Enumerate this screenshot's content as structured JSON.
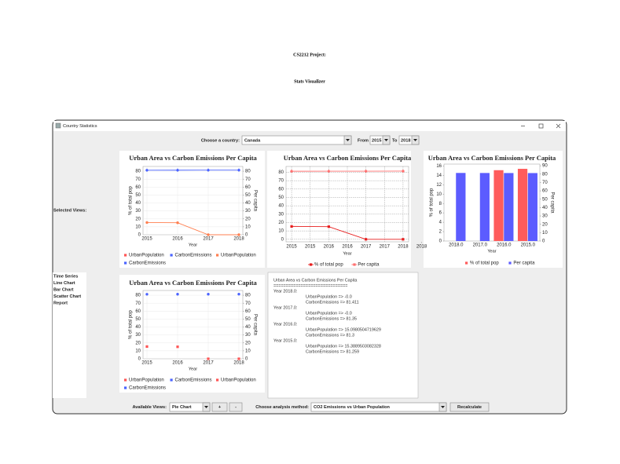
{
  "header": {
    "line1": "CS2212 Project:",
    "title": "Stats Visualizer"
  },
  "window": {
    "title": "Country Statistics",
    "country_label": "Choose a country:",
    "country": "Canada",
    "from_label": "From",
    "from": "2015",
    "to_label": "To",
    "to": "2018",
    "selected_views_label": "Selected Views:",
    "views_list": [
      "Time Series",
      "Line Chart",
      "Bar Chart",
      "Scatter Chart",
      "Report"
    ],
    "available_label": "Available Views:",
    "available": "Pie Chart",
    "add": "+",
    "remove": "-",
    "method_label": "Choose analysis method:",
    "method": "CO2 Emissions vs Urban Population",
    "recalc": "Recalculate"
  },
  "charts": [
    {
      "type": "line",
      "title": "Urban Area vs Carbon Emissions Per Capita",
      "categories": [
        "2015",
        "2016",
        "2017",
        "2018"
      ],
      "series": [
        {
          "name": "UrbanPopulation",
          "color": "#ff7f50",
          "values": [
            15.3889503082328,
            15.0980504719629,
            0,
            0
          ]
        },
        {
          "name": "CarbonEmissions",
          "color": "#4a63ff",
          "axis": "y2",
          "values": [
            81.259,
            81.3,
            81.35,
            81.411
          ]
        }
      ],
      "legend": [
        {
          "name": "UrbanPopulation",
          "color": "#ff5555"
        },
        {
          "name": "CarbonEmissions",
          "color": "#4a63ff"
        },
        {
          "name": "UrbanPopulation",
          "color": "#ff7f50"
        },
        {
          "name": "CarbonEmissions",
          "color": "#4a63ff"
        }
      ],
      "ylim": [
        0,
        86
      ],
      "yticks": [
        0,
        10,
        20,
        30,
        40,
        50,
        60,
        70,
        80
      ],
      "y2lim": [
        0,
        86
      ],
      "y2ticks": [
        0,
        10,
        20,
        30,
        40,
        50,
        60,
        70,
        80
      ],
      "xlabel": "Year",
      "ylabel": "% of total pop",
      "y2label": "Per capita",
      "grid": true
    },
    {
      "type": "line",
      "title": "Urban Area vs Carbon Emissions Per Capita",
      "x": [
        2015,
        2016,
        2017,
        2018
      ],
      "series": [
        {
          "name": "% of total pop",
          "color": "#e81e1e",
          "values": [
            15.3889503082328,
            15.0980504719629,
            0,
            0
          ]
        },
        {
          "name": "Per capita",
          "color": "#ff7070",
          "values": [
            81.259,
            81.3,
            81.35,
            81.411
          ]
        }
      ],
      "xlim": [
        2014.85,
        2018.15
      ],
      "xticks": [
        2015,
        {
          "value": 2015.5,
          "label": "2015"
        },
        2016,
        {
          "value": 2016.5,
          "label": "2016"
        },
        2017,
        {
          "value": 2017.5,
          "label": "2017"
        },
        2018,
        {
          "value": 2018.5,
          "label": "2018"
        }
      ],
      "ylim": [
        -3,
        87
      ],
      "yticks": [
        0,
        10,
        20,
        30,
        40,
        50,
        60,
        70,
        80
      ],
      "xlabel": "Year",
      "grid": true
    },
    {
      "type": "bar",
      "title": "Urban Area vs Carbon Emissions Per Capita",
      "categories": [
        "2018.0",
        "2017.0",
        "2016.0",
        "2015.0"
      ],
      "series": [
        {
          "name": "% of total pop",
          "color": "#ff5c5c",
          "values": [
            0,
            0,
            15.0980504719629,
            15.3889503082328
          ]
        },
        {
          "name": "Per capita",
          "color": "#5c5cff",
          "axis": "y2",
          "values": [
            81.411,
            81.35,
            81.3,
            81.259
          ]
        }
      ],
      "ylim": [
        0,
        16.4
      ],
      "yticks": [
        0,
        2,
        4,
        6,
        8,
        10,
        12,
        14,
        16
      ],
      "y2lim": [
        0,
        92
      ],
      "y2ticks": [
        0,
        10,
        20,
        30,
        40,
        50,
        60,
        70,
        80,
        90
      ],
      "xlabel": "Year",
      "ylabel": "% of total pop",
      "y2label": "Per capita",
      "grid": false
    },
    {
      "type": "scatter",
      "title": "Urban Area vs Carbon Emissions Per Capita",
      "categories": [
        "2015",
        "2016",
        "2017",
        "2018"
      ],
      "series": [
        {
          "name": "UrbanPopulation",
          "color": "#ff5555",
          "values": [
            15.3889503082328,
            15.0980504719629,
            0,
            0
          ]
        },
        {
          "name": "CarbonEmissions",
          "color": "#4a63ff",
          "axis": "y2",
          "values": [
            81.259,
            81.3,
            81.35,
            81.411
          ]
        }
      ],
      "legend": [
        {
          "name": "UrbanPopulation",
          "color": "#ff5555"
        },
        {
          "name": "CarbonEmissions",
          "color": "#4a63ff"
        },
        {
          "name": "UrbanPopulation",
          "color": "#ff5555"
        },
        {
          "name": "CarbonEmissions",
          "color": "#4a63ff"
        }
      ],
      "ylim": [
        0,
        86
      ],
      "yticks": [
        0,
        10,
        20,
        30,
        40,
        50,
        60,
        70,
        80
      ],
      "y2lim": [
        0,
        86
      ],
      "y2ticks": [
        0,
        10,
        20,
        30,
        40,
        50,
        60,
        70,
        80
      ],
      "xlabel": "Year",
      "ylabel": "% of total pop",
      "y2label": "Per capita",
      "grid": true
    }
  ],
  "report": {
    "title": "Urban Area vs Carbon Emissions Per Capita",
    "separator": "==============================",
    "years": [
      {
        "label": "Year 2018.0:",
        "lines": [
          "UrbanPopulation => -0.0",
          "CarbonEmissions => 81.411"
        ]
      },
      {
        "label": "Year 2017.0:",
        "lines": [
          "UrbanPopulation => -0.0",
          "CarbonEmissions => 81.35"
        ]
      },
      {
        "label": "Year 2016.0:",
        "lines": [
          "UrbanPopulation => 15.0980504719629",
          "CarbonEmissions => 81.3"
        ]
      },
      {
        "label": "Year 2015.0:",
        "lines": [
          "UrbanPopulation => 15.3889503082328",
          "CarbonEmissions => 81.259"
        ]
      }
    ]
  }
}
